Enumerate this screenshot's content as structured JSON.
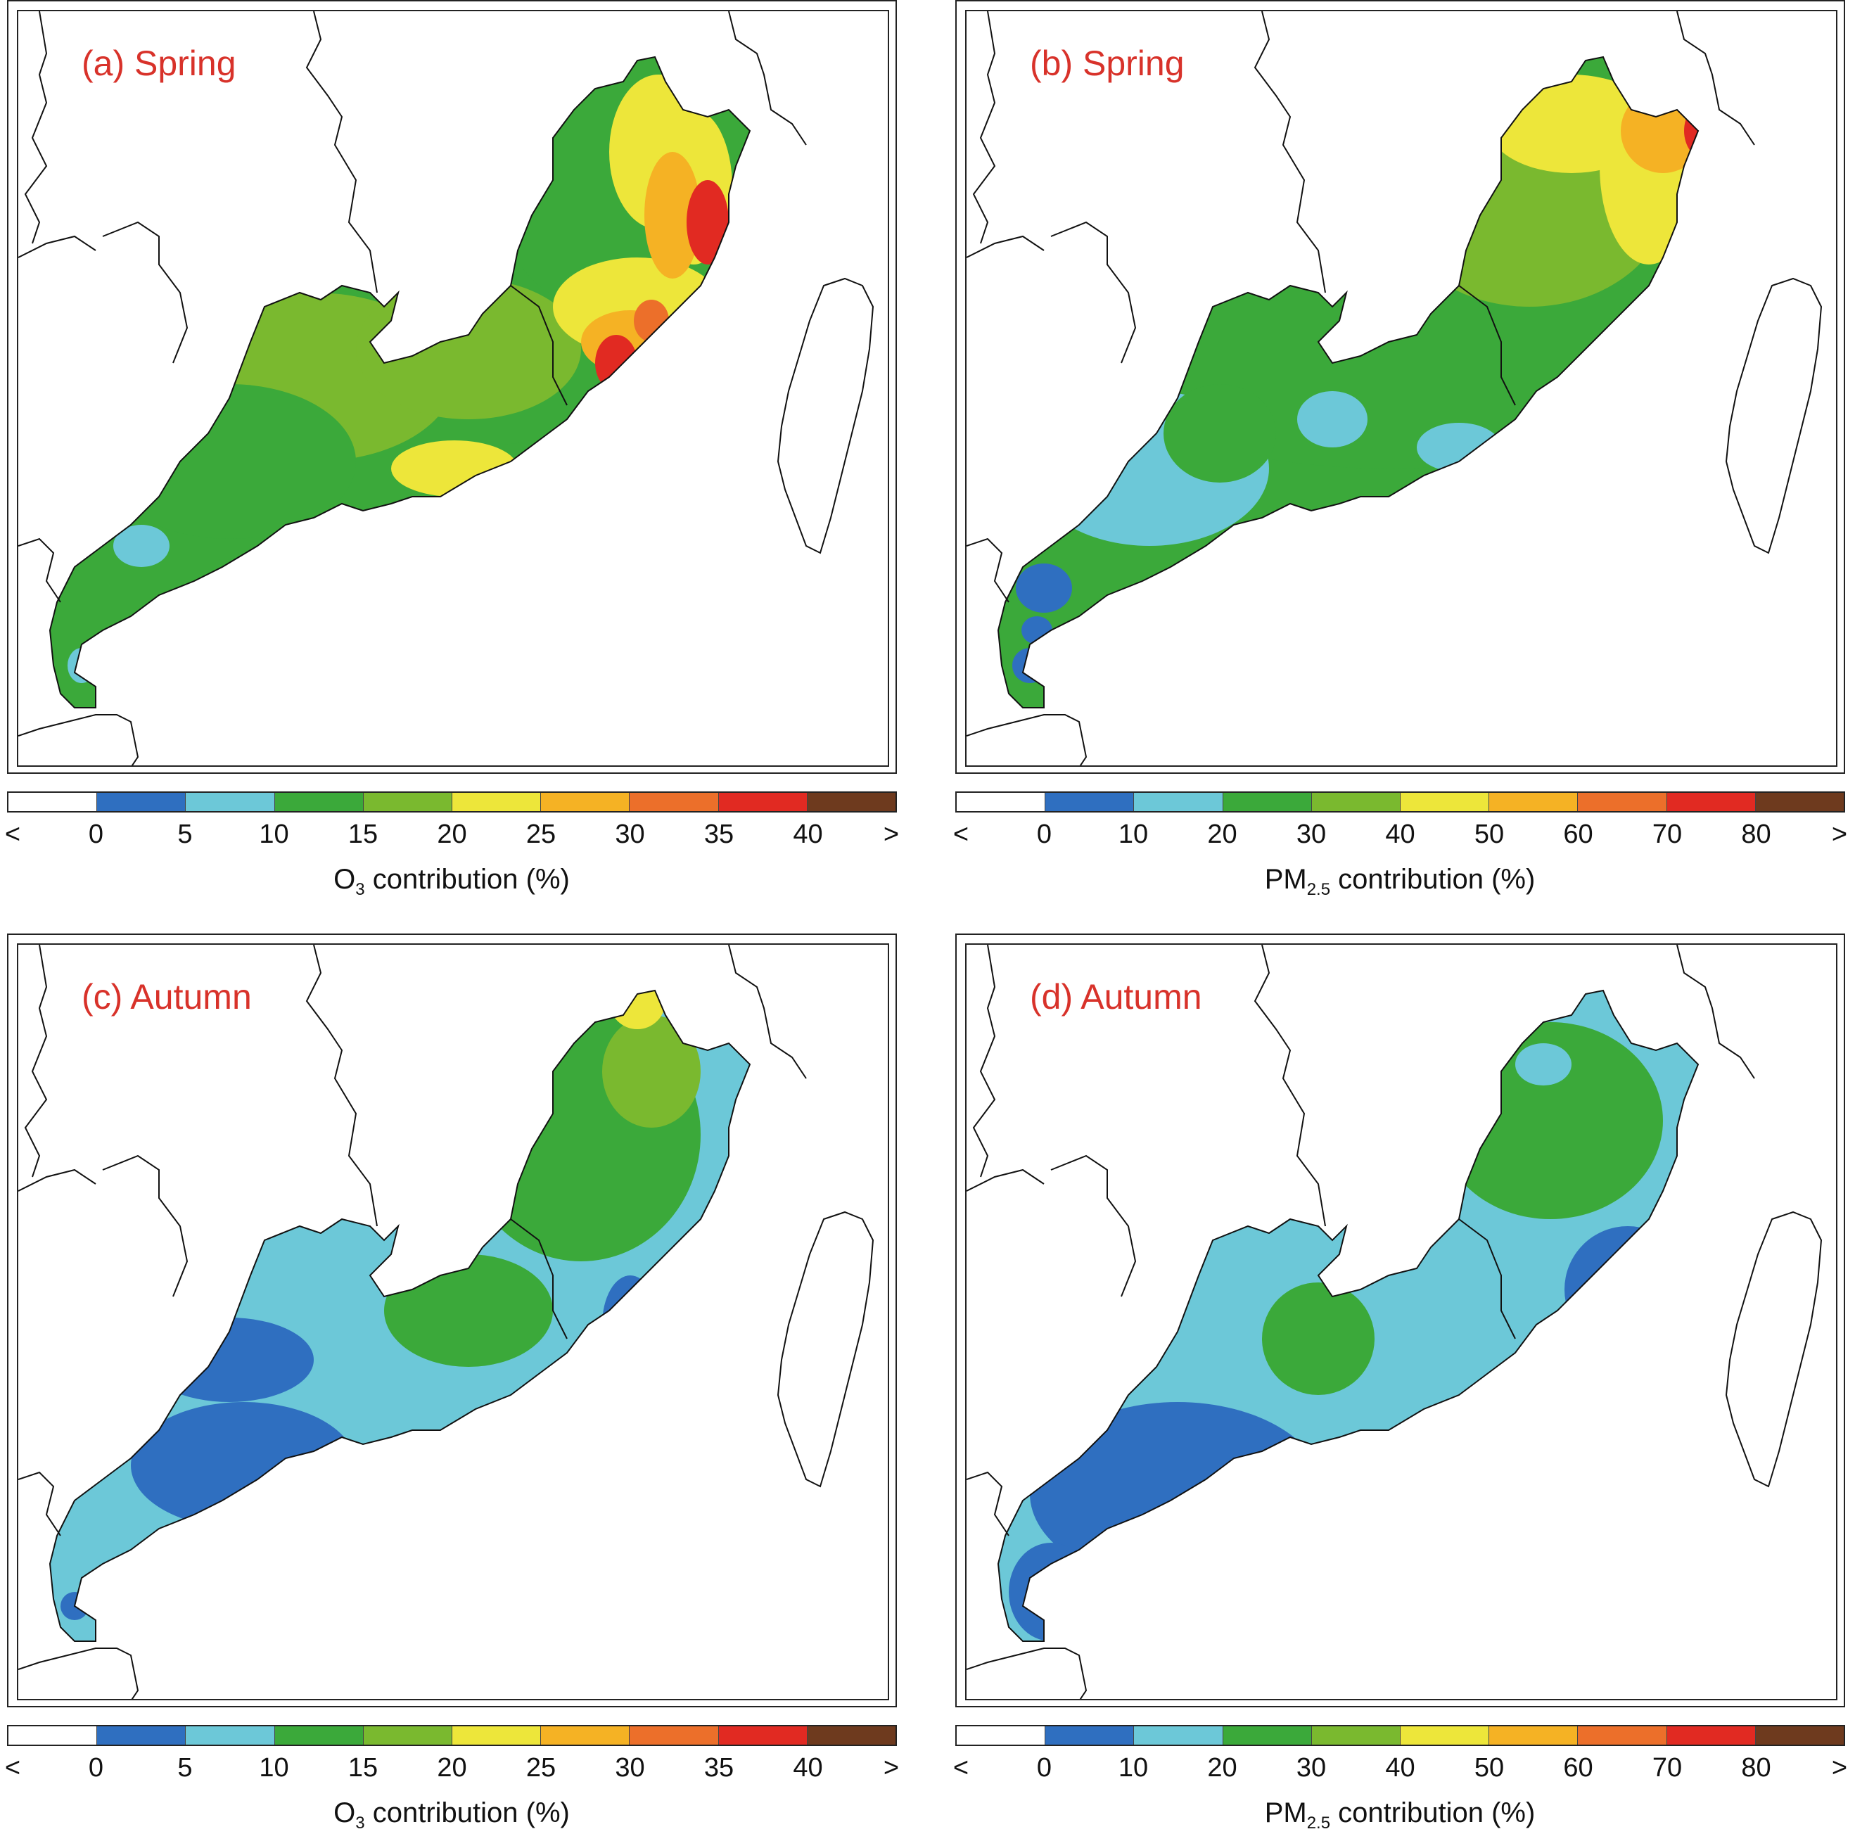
{
  "panels": [
    {
      "id": "a",
      "title": "(a) Spring",
      "variable": "O3",
      "label_main": "O",
      "label_sub": "3",
      "label_rest": " contribution (%)",
      "ticks": [
        "<",
        "0",
        "5",
        "10",
        "15",
        "20",
        "25",
        "30",
        "35",
        "40",
        ">"
      ]
    },
    {
      "id": "b",
      "title": "(b) Spring",
      "variable": "PM2.5",
      "label_main": "PM",
      "label_sub": "2.5",
      "label_rest": " contribution (%)",
      "ticks": [
        "<",
        "0",
        "10",
        "20",
        "30",
        "40",
        "50",
        "60",
        "70",
        "80",
        ">"
      ]
    },
    {
      "id": "c",
      "title": "(c) Autumn",
      "variable": "O3",
      "label_main": "O",
      "label_sub": "3",
      "label_rest": " contribution (%)",
      "ticks": [
        "<",
        "0",
        "5",
        "10",
        "15",
        "20",
        "25",
        "30",
        "35",
        "40",
        ">"
      ]
    },
    {
      "id": "d",
      "title": "(d) Autumn",
      "variable": "PM2.5",
      "label_main": "PM",
      "label_sub": "2.5",
      "label_rest": " contribution (%)",
      "ticks": [
        "<",
        "0",
        "10",
        "20",
        "30",
        "40",
        "50",
        "60",
        "70",
        "80",
        ">"
      ]
    }
  ],
  "colorbar_colors": [
    "#ffffff",
    "#2f6fc0",
    "#6cc8d8",
    "#3ba93a",
    "#7ab92f",
    "#ede63a",
    "#f5b224",
    "#ec6f2a",
    "#e12a22",
    "#6e3a1e"
  ],
  "colors": {
    "title": "#d8322a",
    "coast": "#111111"
  }
}
